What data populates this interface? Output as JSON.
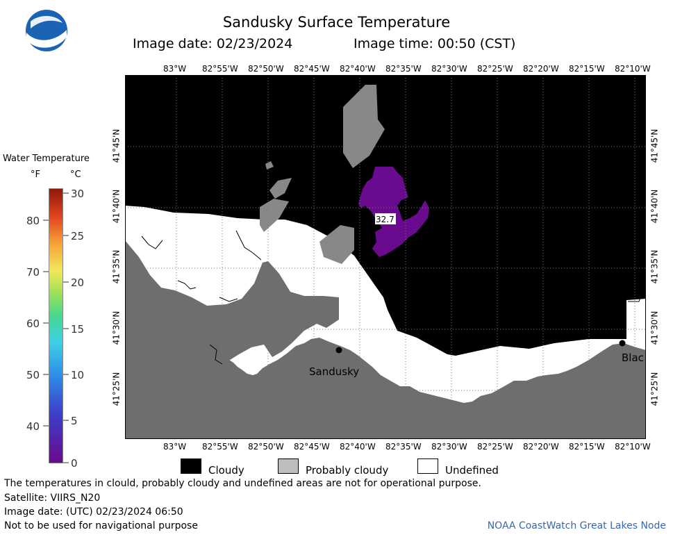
{
  "header": {
    "title": "Sandusky Surface Temperature",
    "image_date": "Image date: 02/23/2024",
    "image_time": "Image time: 00:50 (CST)"
  },
  "logo": {
    "text": "NOAA"
  },
  "map": {
    "lon_labels": [
      "83°W",
      "82°55'W",
      "82°50'W",
      "82°45'W",
      "82°40'W",
      "82°35'W",
      "82°30'W",
      "82°25'W",
      "82°20'W",
      "82°15'W",
      "82°10'W"
    ],
    "lat_labels": [
      "41°45'N",
      "41°40'N",
      "41°35'N",
      "41°30'N",
      "41°25'N"
    ],
    "places": [
      {
        "name": "Sandusky"
      },
      {
        "name": "Blac"
      }
    ],
    "value_label": "32.7"
  },
  "color_scale": {
    "title": "Water Temperature",
    "unit_f": "°F",
    "unit_c": "°C",
    "f_labels": [
      "80",
      "70",
      "60",
      "50",
      "40"
    ],
    "c_labels": [
      "30",
      "25",
      "20",
      "15",
      "10",
      "5",
      "0"
    ]
  },
  "legend": {
    "cloudy": "Cloudy",
    "probably_cloudy": "Probably cloudy",
    "undefined": "Undefined"
  },
  "footer": {
    "disclaimer": "The temperatures in clould, probably cloudy and undefined areas are not for operational purpose.",
    "satellite": "Satellite: VIIRS_N20",
    "utc_date": "Image date: (UTC) 02/23/2024  06:50",
    "nav_warning": "Not to be used for navigational purpose",
    "credit": "NOAA CoastWatch Great Lakes Node"
  },
  "colors": {
    "cloudy": "#000000",
    "probably_cloudy": "#6e6e6e",
    "undefined": "#ffffff",
    "temperature_cell": "#6a0a8f",
    "credit_text": "#3a66b0"
  }
}
